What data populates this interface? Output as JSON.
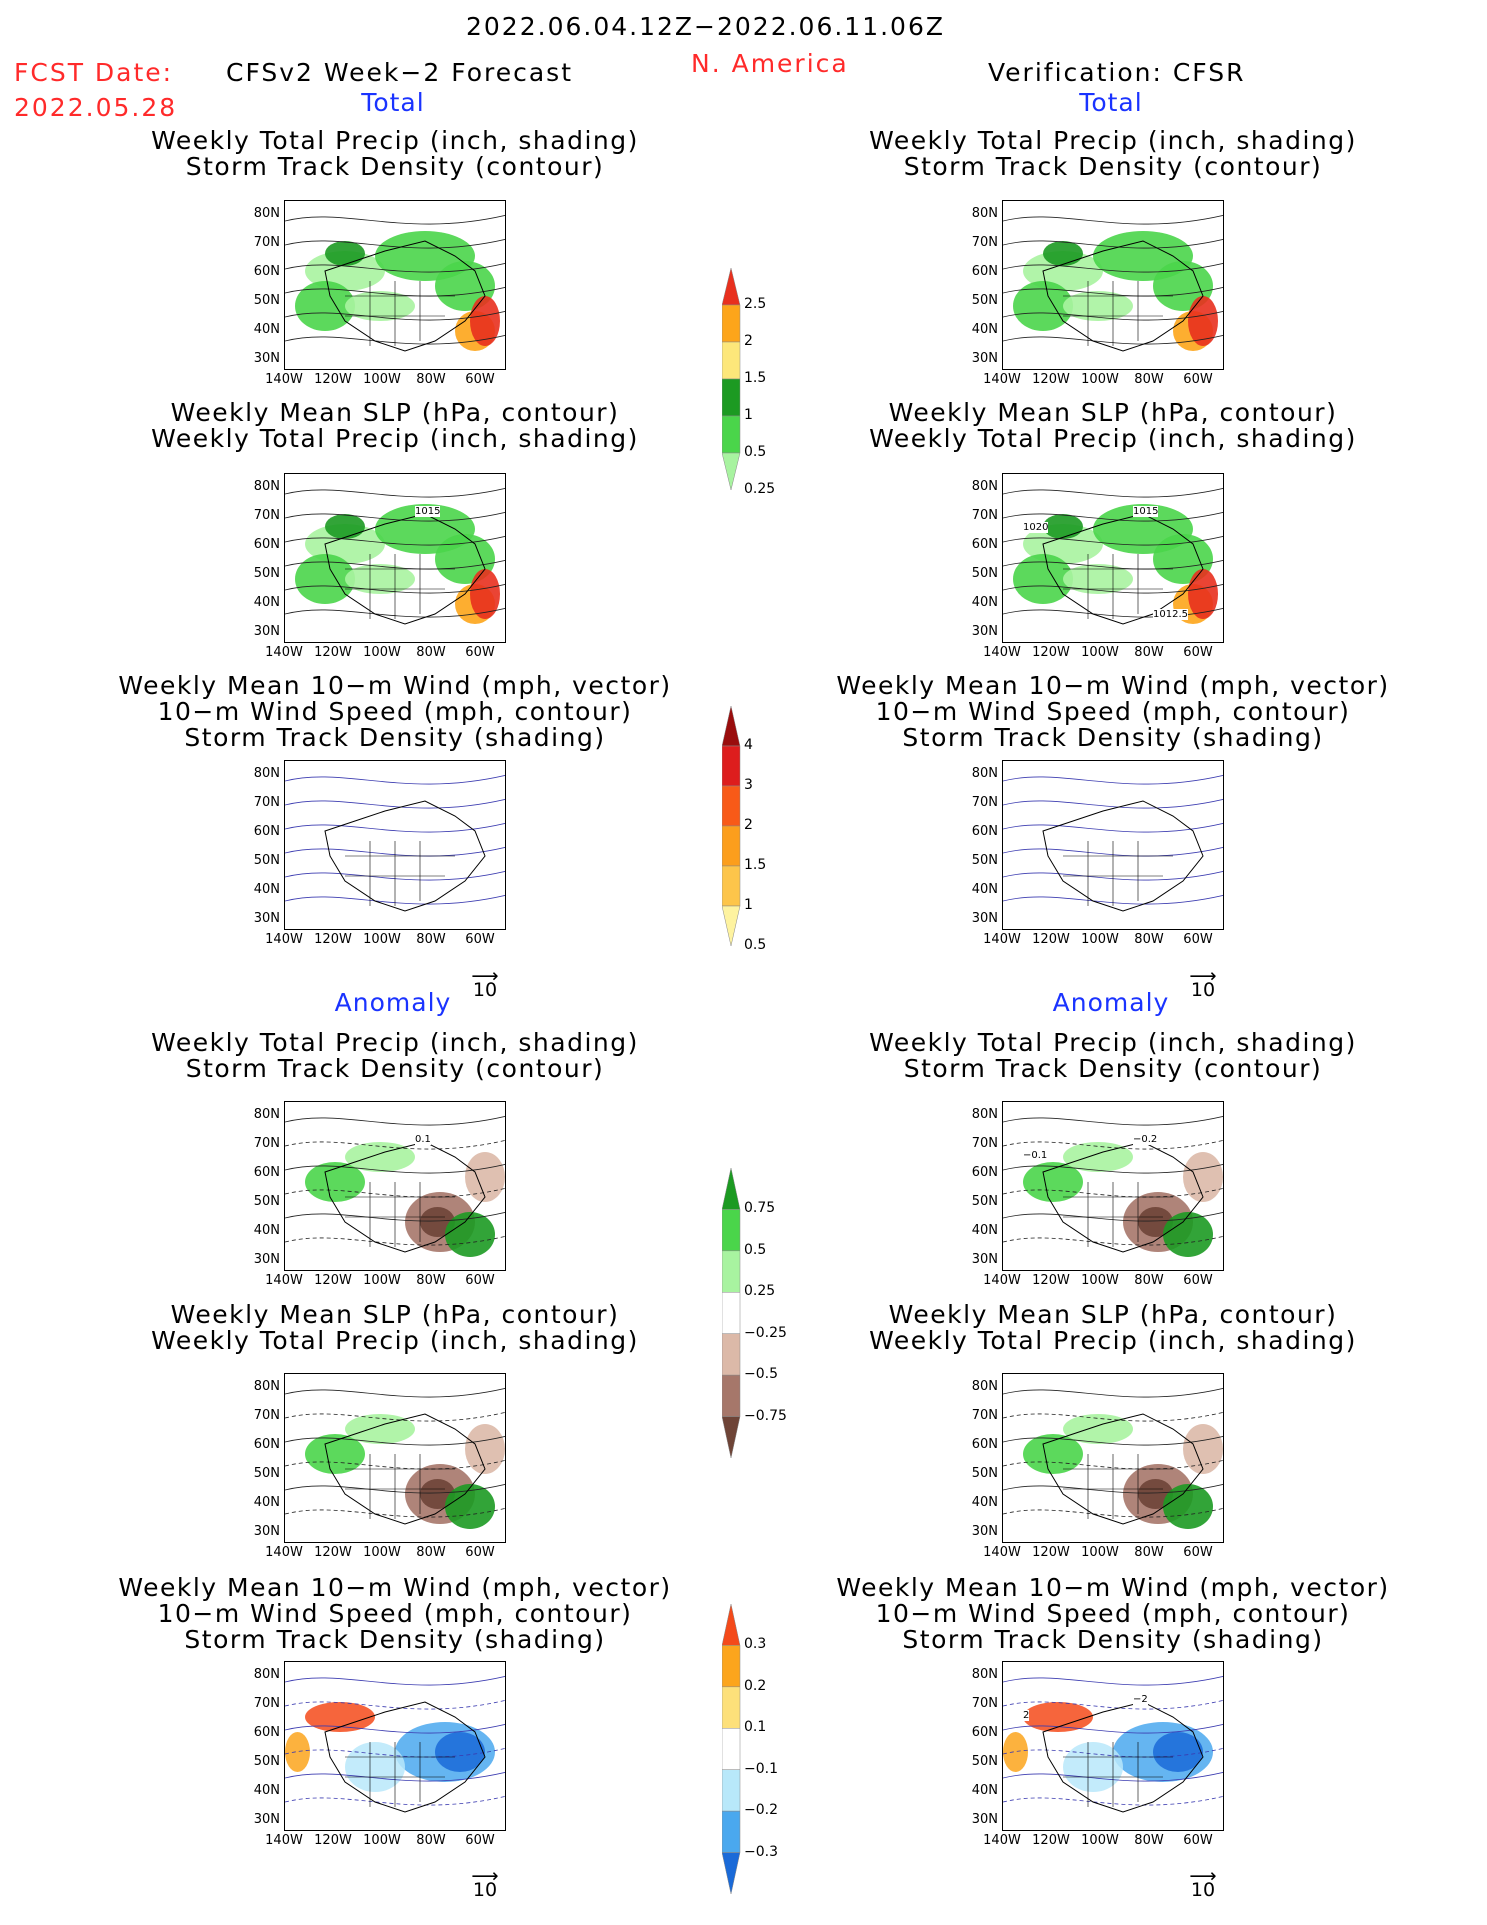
{
  "header": {
    "period": "2022.06.04.12Z−2022.06.11.06Z",
    "region": "N. America",
    "fcst_label": "FCST Date:",
    "fcst_date": "2022.05.28",
    "forecast_title": "CFSv2 Week−2 Forecast",
    "verification_title": "Verification: CFSR"
  },
  "sections": {
    "total": "Total",
    "anomaly": "Anomaly"
  },
  "captions": {
    "precip_storm": [
      "Weekly Total Precip (inch, shading)",
      "Storm Track Density (contour)"
    ],
    "slp_precip": [
      "Weekly Mean SLP (hPa, contour)",
      "Weekly Total Precip (inch, shading)"
    ],
    "wind_storm": [
      "Weekly Mean 10−m Wind (mph, vector)",
      "10−m Wind Speed (mph, contour)",
      "Storm Track Density (shading)"
    ]
  },
  "axes": {
    "lat_labels": [
      "80N",
      "70N",
      "60N",
      "50N",
      "40N",
      "30N"
    ],
    "lon_labels": [
      "140W",
      "120W",
      "100W",
      "80W",
      "60W"
    ]
  },
  "vector_scale": "10",
  "map_contour_labels": {
    "fc_total_slp": [
      "1015"
    ],
    "vf_total_slp": [
      "1015",
      "1020",
      "1012.5"
    ],
    "fc_anom_precip": [
      "0.1"
    ],
    "vf_anom_precip": [
      "−0.2",
      "−0.1"
    ],
    "vf_anom_wind": [
      "−2",
      "2"
    ]
  },
  "colorbars": {
    "total_precip": {
      "labels": [
        "2.5",
        "2",
        "1.5",
        "1",
        "0.5",
        "0.25"
      ],
      "colors": [
        "#e8301e",
        "#fda51a",
        "#fde77a",
        "#1c9a22",
        "#4ad54a",
        "#a8f3a0"
      ]
    },
    "total_storm": {
      "labels": [
        "4",
        "3",
        "2",
        "1.5",
        "1",
        "0.5"
      ],
      "colors": [
        "#9a0d0d",
        "#dd1d1d",
        "#f85a18",
        "#fc9e1c",
        "#fdc54a",
        "#fef3a0"
      ]
    },
    "anom_precip": {
      "labels": [
        "0.75",
        "0.5",
        "0.25",
        "−0.25",
        "−0.5",
        "−0.75"
      ],
      "colors": [
        "#1c9a22",
        "#4ad54a",
        "#a8f3a0",
        "#ffffff",
        "#dcb9a8",
        "#a6776a",
        "#6e4437"
      ]
    },
    "anom_storm": {
      "labels": [
        "0.3",
        "0.2",
        "0.1",
        "−0.1",
        "−0.2",
        "−0.3"
      ],
      "colors": [
        "#f44a1a",
        "#fca51c",
        "#fde07a",
        "#ffffff",
        "#b8e8fa",
        "#4aa8ee",
        "#1a6ad8"
      ]
    }
  }
}
